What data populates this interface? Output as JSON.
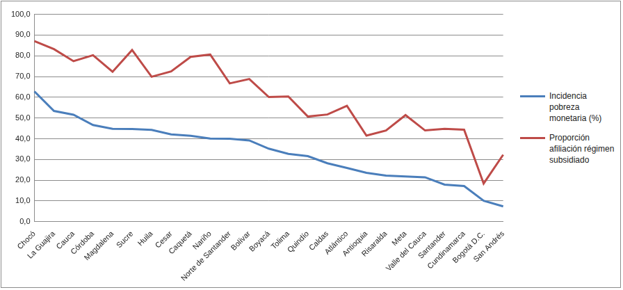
{
  "chart_data": {
    "type": "line",
    "categories": [
      "Chocó",
      "La Guajira",
      "Cauca",
      "Córdoba",
      "Magdalena",
      "Sucre",
      "Huila",
      "Cesar",
      "Caquetá",
      "Nariño",
      "Norte de Santander",
      "Bolívar",
      "Boyacá",
      "Tolima",
      "Quindío",
      "Caldas",
      "Atlántico",
      "Antioquia",
      "Risaralda",
      "Meta",
      "Valle del Cauca",
      "Santander",
      "Cundinamarca",
      "Bogotá D.C.",
      "San Andrés"
    ],
    "series": [
      {
        "name": "Incidencia pobreza monetaria (%)",
        "color": "#4a7ebb",
        "values": [
          62.8,
          53.4,
          51.6,
          46.6,
          44.8,
          44.7,
          44.3,
          42.1,
          41.4,
          40.1,
          40.0,
          39.2,
          35.2,
          32.7,
          31.6,
          28.2,
          25.9,
          23.6,
          22.2,
          21.8,
          21.4,
          17.9,
          17.2,
          10.1,
          7.4
        ]
      },
      {
        "name": "Proporción afiliación régimen subsidiado",
        "color": "#be4b48",
        "values": [
          87.1,
          83.2,
          77.4,
          80.3,
          72.3,
          82.8,
          69.9,
          72.5,
          79.5,
          80.6,
          66.7,
          68.8,
          60.1,
          60.4,
          50.7,
          51.7,
          55.9,
          41.5,
          44.0,
          51.4,
          44.0,
          44.8,
          44.4,
          18.4,
          32.3
        ]
      }
    ],
    "ylim": [
      0,
      100
    ],
    "yticks": [
      {
        "value": 0,
        "label": "0,0"
      },
      {
        "value": 10,
        "label": "10,0"
      },
      {
        "value": 20,
        "label": "20,0"
      },
      {
        "value": 30,
        "label": "30,0"
      },
      {
        "value": 40,
        "label": "40,0"
      },
      {
        "value": 50,
        "label": "50,0"
      },
      {
        "value": 60,
        "label": "60,0"
      },
      {
        "value": 70,
        "label": "70,0"
      },
      {
        "value": 80,
        "label": "80,0"
      },
      {
        "value": 90,
        "label": "90,0"
      },
      {
        "value": 100,
        "label": "100,0"
      }
    ],
    "grid": true,
    "legend": "right"
  }
}
